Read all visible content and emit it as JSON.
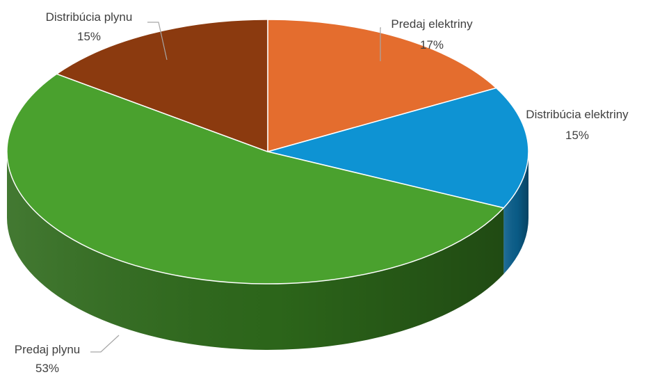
{
  "chart_data": {
    "type": "pie",
    "style": "3d",
    "title": "",
    "start_angle_deg": 0,
    "direction": "clockwise",
    "categories": [
      "Predaj elektriny",
      "Distribúcia elektriny",
      "Predaj plynu",
      "Distribúcia plynu"
    ],
    "values": [
      17,
      15,
      53,
      15
    ],
    "value_labels": [
      "17%",
      "15%",
      "53%",
      "15%"
    ],
    "colors": [
      "#e46d2e",
      "#0e93d3",
      "#4aa12e",
      "#8b3a0f"
    ],
    "side_colors": [
      "#a94e1d",
      "#0a5f8c",
      "#2e6a1b",
      "#5e2609"
    ],
    "legend": "none",
    "data_labels": "outside-with-leaders"
  }
}
